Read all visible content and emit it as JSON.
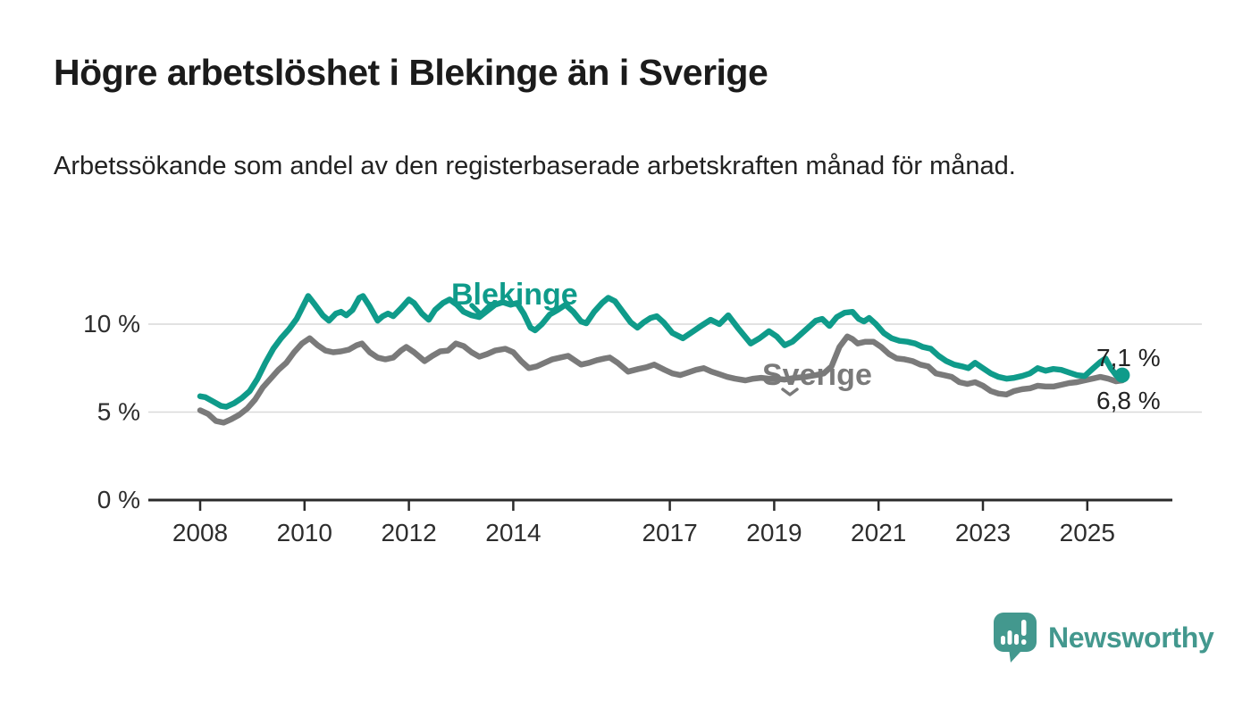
{
  "header": {
    "title": "Högre arbetslöshet i Blekinge än i Sverige",
    "subtitle": "Arbetssökande som andel av den registerbaserade arbetskraften månad för månad."
  },
  "chart_data": {
    "type": "line",
    "title": "Högre arbetslöshet i Blekinge än i Sverige",
    "subtitle": "Arbetssökande som andel av den registerbaserade arbetskraften månad för månad.",
    "unit": "%",
    "grid": "horizontal",
    "legend_position": "inline-labels",
    "x_range": [
      2008.0,
      2026.3
    ],
    "y_range": [
      0,
      12.5
    ],
    "y_ticks": [
      {
        "value": 0,
        "label": "0 %"
      },
      {
        "value": 5,
        "label": "5 %"
      },
      {
        "value": 10,
        "label": "10 %"
      }
    ],
    "x_ticks": [
      {
        "value": 2008,
        "label": "2008"
      },
      {
        "value": 2010,
        "label": "2010"
      },
      {
        "value": 2012,
        "label": "2012"
      },
      {
        "value": 2014,
        "label": "2014"
      },
      {
        "value": 2017,
        "label": "2017"
      },
      {
        "value": 2019,
        "label": "2019"
      },
      {
        "value": 2021,
        "label": "2021"
      },
      {
        "value": 2023,
        "label": "2023"
      },
      {
        "value": 2025,
        "label": "2025"
      }
    ],
    "series": [
      {
        "name": "Sverige",
        "color": "#7a7a7a",
        "latest_value": 6.8,
        "points": [
          [
            2008.0,
            5.1
          ],
          [
            2008.15,
            4.9
          ],
          [
            2008.3,
            4.5
          ],
          [
            2008.45,
            4.4
          ],
          [
            2008.6,
            4.6
          ],
          [
            2008.75,
            4.85
          ],
          [
            2008.9,
            5.2
          ],
          [
            2009.05,
            5.7
          ],
          [
            2009.2,
            6.4
          ],
          [
            2009.35,
            6.9
          ],
          [
            2009.5,
            7.4
          ],
          [
            2009.65,
            7.8
          ],
          [
            2009.8,
            8.4
          ],
          [
            2009.95,
            8.9
          ],
          [
            2010.1,
            9.2
          ],
          [
            2010.25,
            8.8
          ],
          [
            2010.4,
            8.5
          ],
          [
            2010.55,
            8.4
          ],
          [
            2010.7,
            8.45
          ],
          [
            2010.85,
            8.55
          ],
          [
            2011.0,
            8.8
          ],
          [
            2011.1,
            8.9
          ],
          [
            2011.25,
            8.4
          ],
          [
            2011.4,
            8.1
          ],
          [
            2011.55,
            8.0
          ],
          [
            2011.7,
            8.1
          ],
          [
            2011.85,
            8.5
          ],
          [
            2011.95,
            8.7
          ],
          [
            2012.1,
            8.4
          ],
          [
            2012.3,
            7.9
          ],
          [
            2012.45,
            8.2
          ],
          [
            2012.6,
            8.45
          ],
          [
            2012.75,
            8.5
          ],
          [
            2012.9,
            8.9
          ],
          [
            2013.05,
            8.75
          ],
          [
            2013.2,
            8.4
          ],
          [
            2013.35,
            8.15
          ],
          [
            2013.5,
            8.3
          ],
          [
            2013.65,
            8.5
          ],
          [
            2013.85,
            8.6
          ],
          [
            2014.0,
            8.4
          ],
          [
            2014.15,
            7.9
          ],
          [
            2014.3,
            7.5
          ],
          [
            2014.45,
            7.6
          ],
          [
            2014.6,
            7.8
          ],
          [
            2014.75,
            8.0
          ],
          [
            2014.9,
            8.1
          ],
          [
            2015.05,
            8.2
          ],
          [
            2015.2,
            7.9
          ],
          [
            2015.3,
            7.7
          ],
          [
            2015.45,
            7.8
          ],
          [
            2015.6,
            7.95
          ],
          [
            2015.75,
            8.05
          ],
          [
            2015.85,
            8.1
          ],
          [
            2016.0,
            7.8
          ],
          [
            2016.2,
            7.3
          ],
          [
            2016.4,
            7.45
          ],
          [
            2016.55,
            7.55
          ],
          [
            2016.7,
            7.7
          ],
          [
            2016.9,
            7.4
          ],
          [
            2017.05,
            7.2
          ],
          [
            2017.2,
            7.1
          ],
          [
            2017.35,
            7.25
          ],
          [
            2017.5,
            7.4
          ],
          [
            2017.65,
            7.5
          ],
          [
            2017.8,
            7.3
          ],
          [
            2017.95,
            7.15
          ],
          [
            2018.1,
            7.0
          ],
          [
            2018.25,
            6.9
          ],
          [
            2018.45,
            6.8
          ],
          [
            2018.6,
            6.9
          ],
          [
            2018.75,
            6.95
          ],
          [
            2018.9,
            6.9
          ],
          [
            2019.05,
            6.9
          ],
          [
            2019.2,
            6.85
          ],
          [
            2019.4,
            6.95
          ],
          [
            2019.6,
            7.0
          ],
          [
            2019.8,
            7.1
          ],
          [
            2019.95,
            7.2
          ],
          [
            2020.1,
            7.6
          ],
          [
            2020.25,
            8.7
          ],
          [
            2020.4,
            9.3
          ],
          [
            2020.5,
            9.15
          ],
          [
            2020.6,
            8.9
          ],
          [
            2020.75,
            9.0
          ],
          [
            2020.9,
            9.0
          ],
          [
            2021.05,
            8.7
          ],
          [
            2021.2,
            8.3
          ],
          [
            2021.35,
            8.05
          ],
          [
            2021.5,
            8.0
          ],
          [
            2021.65,
            7.9
          ],
          [
            2021.8,
            7.7
          ],
          [
            2021.95,
            7.6
          ],
          [
            2022.1,
            7.2
          ],
          [
            2022.25,
            7.1
          ],
          [
            2022.4,
            7.0
          ],
          [
            2022.55,
            6.7
          ],
          [
            2022.7,
            6.6
          ],
          [
            2022.85,
            6.7
          ],
          [
            2023.0,
            6.5
          ],
          [
            2023.15,
            6.2
          ],
          [
            2023.3,
            6.05
          ],
          [
            2023.45,
            6.0
          ],
          [
            2023.6,
            6.2
          ],
          [
            2023.75,
            6.3
          ],
          [
            2023.9,
            6.35
          ],
          [
            2024.05,
            6.5
          ],
          [
            2024.2,
            6.45
          ],
          [
            2024.35,
            6.45
          ],
          [
            2024.5,
            6.55
          ],
          [
            2024.65,
            6.65
          ],
          [
            2024.8,
            6.7
          ],
          [
            2024.95,
            6.8
          ],
          [
            2025.1,
            6.9
          ],
          [
            2025.25,
            7.0
          ],
          [
            2025.4,
            6.9
          ],
          [
            2025.55,
            6.75
          ],
          [
            2025.67,
            6.8
          ]
        ]
      },
      {
        "name": "Blekinge",
        "color": "#0f9b8a",
        "latest_value": 7.1,
        "points": [
          [
            2008.0,
            5.9
          ],
          [
            2008.1,
            5.85
          ],
          [
            2008.25,
            5.6
          ],
          [
            2008.4,
            5.35
          ],
          [
            2008.5,
            5.3
          ],
          [
            2008.65,
            5.5
          ],
          [
            2008.8,
            5.8
          ],
          [
            2008.95,
            6.2
          ],
          [
            2009.1,
            6.9
          ],
          [
            2009.25,
            7.8
          ],
          [
            2009.4,
            8.6
          ],
          [
            2009.55,
            9.2
          ],
          [
            2009.7,
            9.7
          ],
          [
            2009.85,
            10.3
          ],
          [
            2009.95,
            10.9
          ],
          [
            2010.07,
            11.6
          ],
          [
            2010.2,
            11.1
          ],
          [
            2010.35,
            10.5
          ],
          [
            2010.47,
            10.2
          ],
          [
            2010.6,
            10.6
          ],
          [
            2010.7,
            10.7
          ],
          [
            2010.8,
            10.5
          ],
          [
            2010.92,
            10.8
          ],
          [
            2011.05,
            11.5
          ],
          [
            2011.12,
            11.6
          ],
          [
            2011.25,
            11.0
          ],
          [
            2011.4,
            10.2
          ],
          [
            2011.5,
            10.45
          ],
          [
            2011.6,
            10.6
          ],
          [
            2011.7,
            10.45
          ],
          [
            2011.85,
            10.9
          ],
          [
            2012.0,
            11.4
          ],
          [
            2012.1,
            11.2
          ],
          [
            2012.25,
            10.6
          ],
          [
            2012.38,
            10.25
          ],
          [
            2012.5,
            10.8
          ],
          [
            2012.65,
            11.2
          ],
          [
            2012.78,
            11.4
          ],
          [
            2012.92,
            11.1
          ],
          [
            2013.05,
            10.7
          ],
          [
            2013.2,
            10.5
          ],
          [
            2013.35,
            10.4
          ],
          [
            2013.5,
            10.75
          ],
          [
            2013.65,
            11.1
          ],
          [
            2013.8,
            11.25
          ],
          [
            2013.95,
            11.1
          ],
          [
            2014.07,
            11.2
          ],
          [
            2014.2,
            10.6
          ],
          [
            2014.33,
            9.8
          ],
          [
            2014.42,
            9.65
          ],
          [
            2014.55,
            10.0
          ],
          [
            2014.7,
            10.55
          ],
          [
            2014.85,
            10.8
          ],
          [
            2015.0,
            11.1
          ],
          [
            2015.15,
            10.7
          ],
          [
            2015.3,
            10.15
          ],
          [
            2015.4,
            10.05
          ],
          [
            2015.55,
            10.7
          ],
          [
            2015.7,
            11.2
          ],
          [
            2015.82,
            11.5
          ],
          [
            2015.95,
            11.3
          ],
          [
            2016.1,
            10.7
          ],
          [
            2016.25,
            10.1
          ],
          [
            2016.38,
            9.8
          ],
          [
            2016.5,
            10.1
          ],
          [
            2016.63,
            10.35
          ],
          [
            2016.75,
            10.45
          ],
          [
            2016.88,
            10.1
          ],
          [
            2017.05,
            9.5
          ],
          [
            2017.25,
            9.2
          ],
          [
            2017.45,
            9.6
          ],
          [
            2017.6,
            9.9
          ],
          [
            2017.78,
            10.25
          ],
          [
            2017.95,
            10.0
          ],
          [
            2018.12,
            10.5
          ],
          [
            2018.3,
            9.8
          ],
          [
            2018.55,
            8.9
          ],
          [
            2018.72,
            9.2
          ],
          [
            2018.9,
            9.6
          ],
          [
            2019.05,
            9.3
          ],
          [
            2019.2,
            8.8
          ],
          [
            2019.35,
            9.0
          ],
          [
            2019.5,
            9.4
          ],
          [
            2019.65,
            9.8
          ],
          [
            2019.8,
            10.2
          ],
          [
            2019.92,
            10.3
          ],
          [
            2020.06,
            9.9
          ],
          [
            2020.2,
            10.4
          ],
          [
            2020.35,
            10.65
          ],
          [
            2020.5,
            10.7
          ],
          [
            2020.62,
            10.3
          ],
          [
            2020.72,
            10.15
          ],
          [
            2020.82,
            10.35
          ],
          [
            2020.95,
            10.0
          ],
          [
            2021.1,
            9.5
          ],
          [
            2021.25,
            9.2
          ],
          [
            2021.4,
            9.05
          ],
          [
            2021.55,
            9.0
          ],
          [
            2021.7,
            8.9
          ],
          [
            2021.85,
            8.7
          ],
          [
            2022.0,
            8.6
          ],
          [
            2022.15,
            8.2
          ],
          [
            2022.3,
            7.9
          ],
          [
            2022.45,
            7.7
          ],
          [
            2022.6,
            7.6
          ],
          [
            2022.72,
            7.5
          ],
          [
            2022.85,
            7.8
          ],
          [
            2023.0,
            7.5
          ],
          [
            2023.15,
            7.2
          ],
          [
            2023.3,
            7.0
          ],
          [
            2023.45,
            6.9
          ],
          [
            2023.6,
            6.95
          ],
          [
            2023.75,
            7.05
          ],
          [
            2023.9,
            7.2
          ],
          [
            2024.05,
            7.5
          ],
          [
            2024.2,
            7.35
          ],
          [
            2024.35,
            7.45
          ],
          [
            2024.5,
            7.4
          ],
          [
            2024.65,
            7.25
          ],
          [
            2024.8,
            7.1
          ],
          [
            2024.95,
            7.05
          ],
          [
            2025.1,
            7.45
          ],
          [
            2025.25,
            7.85
          ],
          [
            2025.35,
            8.05
          ],
          [
            2025.45,
            7.5
          ],
          [
            2025.55,
            7.1
          ],
          [
            2025.62,
            6.95
          ],
          [
            2025.67,
            7.1
          ]
        ]
      }
    ],
    "end_labels": {
      "blekinge": "7,1 %",
      "sverige": "6,8 %"
    }
  },
  "colors": {
    "blekinge": "#0f9b8a",
    "sverige": "#7a7a7a",
    "grid": "#d9d9d9",
    "axis": "#2b2b2b",
    "brand": "#43988e"
  },
  "footer": {
    "brand": "Newsworthy"
  }
}
